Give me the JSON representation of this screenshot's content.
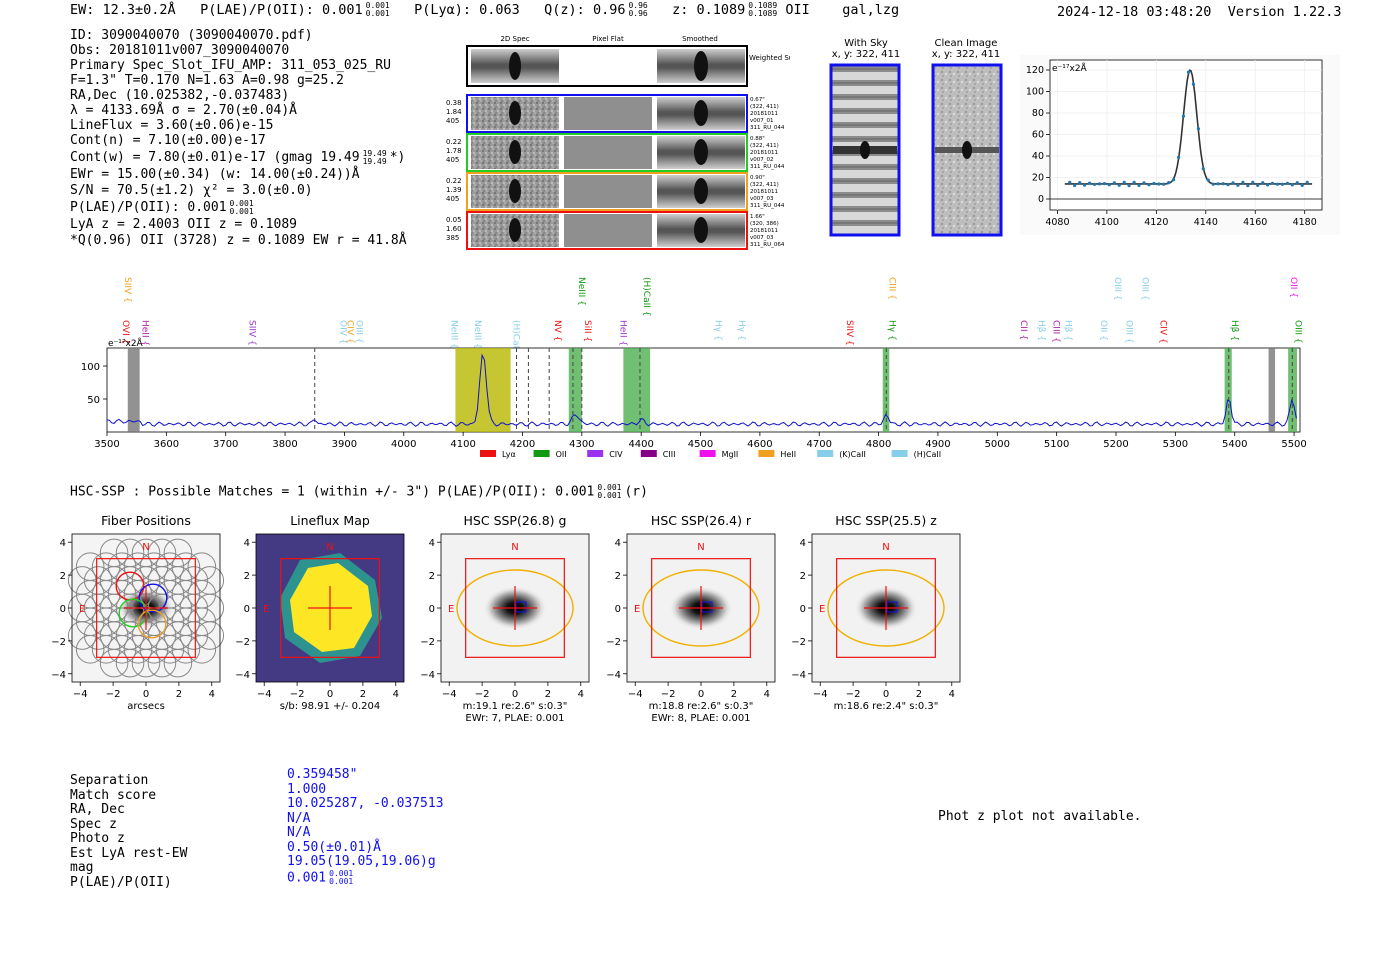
{
  "header": {
    "ew": "EW: 12.3±0.2Å",
    "plae_label": "P(LAE)/P(OII): 0.001",
    "plae_sup": "0.001",
    "plae_sub": "0.001",
    "plya": "P(Lyα): 0.063",
    "qz_label": "Q(z): 0.96",
    "qz_sup": "0.96",
    "qz_sub": "0.96",
    "z_label": "z: 0.1089",
    "z_sup": "0.1089",
    "z_sub": "0.1089",
    "z_line": "OII",
    "classes": "gal,lzg",
    "datetime": "2024-12-18 03:48:20",
    "version": "Version 1.22.3"
  },
  "info": {
    "id": "ID: 3090040070 (3090040070.pdf)",
    "obs": "Obs: 20181011v007_3090040070",
    "primary": "Primary Spec_Slot_IFU_AMP: 311_053_025_RU",
    "params": "F=1.3\"  T=0.170  N=1.63  A=0.98  g=25.2",
    "radec": "RA,Dec (10.025382,-0.037483)",
    "lambda": "λ = 4133.69Å  σ = 2.70(±0.04)Å",
    "lineflux": "LineFlux = 3.60(±0.06)e-15",
    "contn": "Cont(n) = 7.10(±0.00)e-17",
    "contw": "Cont(w) = 7.80(±0.01)e-17 (gmag 19.49",
    "contw_sup": "19.49",
    "contw_sub": "19.49",
    "contw_end": "*)",
    "ewr": "EWr = 15.00(±0.34) (w: 14.00(±0.24))Å",
    "sn": "S/N = 70.5(±1.2)  χ² = 3.0(±0.0)",
    "plae": "P(LAE)/P(OII): 0.001",
    "plae_sup": "0.001",
    "plae_sub": "0.001",
    "lya": "LyA z = 2.4003  OII z = 0.1089",
    "q": "*Q(0.96) OII (3728) z = 0.1089  EW r = 41.8Å"
  },
  "spec2d": {
    "col_headers": [
      "2D Spec",
      "Pixel Flat",
      "Smoothed"
    ],
    "weighted_sum": "Weighted Sum",
    "rows": [
      {
        "left": [
          "0.38",
          "1.84",
          "405"
        ],
        "right": [
          "0.67\"",
          "(322, 411)",
          "20181011",
          "v007_01",
          "311_RU_044"
        ],
        "color": "#1010ee"
      },
      {
        "left": [
          "0.22",
          "1.78",
          "405"
        ],
        "right": [
          "0.88\"",
          "(322, 411)",
          "20181011",
          "v007_02",
          "311_RU_044"
        ],
        "color": "#22cc22"
      },
      {
        "left": [
          "0.22",
          "1.39",
          "405"
        ],
        "right": [
          "0.90\"",
          "(322, 411)",
          "20181011",
          "v007_03",
          "311_RU_044"
        ],
        "color": "#f0a020"
      },
      {
        "left": [
          "0.05",
          "1.60",
          "385"
        ],
        "right": [
          "1.66\"",
          "(320, 386)",
          "20181011",
          "v007_03",
          "311_RU_064"
        ],
        "color": "#ee1111"
      }
    ]
  },
  "sky": {
    "with_sky_title": "With Sky",
    "with_sky_xy": "x, y: 322, 411",
    "clean_title": "Clean Image",
    "clean_xy": "x, y: 322, 411"
  },
  "zoom_plot": {
    "ylabel": "e⁻¹⁷x2Å",
    "xticks": [
      "4080",
      "4100",
      "4120",
      "4140",
      "4160",
      "4180"
    ],
    "yticks": [
      "0",
      "20",
      "40",
      "60",
      "80",
      "100",
      "120"
    ]
  },
  "full_spec": {
    "ylabel": "e⁻¹⁷x2Å",
    "yticks": [
      "50",
      "100"
    ],
    "xticks": [
      "3500",
      "3600",
      "3700",
      "3800",
      "3900",
      "4000",
      "4100",
      "4200",
      "4300",
      "4400",
      "4500",
      "4600",
      "4700",
      "4800",
      "4900",
      "5000",
      "5100",
      "5200",
      "5300",
      "5400",
      "5500"
    ],
    "top_lines": [
      {
        "label": "SIIV",
        "color": "#f0a020",
        "wl": 3525
      },
      {
        "label": "NeIII",
        "color": "#119911",
        "wl": 4290
      },
      {
        "label": "(H)CaII",
        "color": "#119911",
        "wl": 4400
      },
      {
        "label": "CIII",
        "color": "#f0a020",
        "wl": 4813
      },
      {
        "label": "OIII",
        "color": "#87ceeb",
        "wl": 5193
      },
      {
        "label": "OIII",
        "color": "#87ceeb",
        "wl": 5240
      },
      {
        "label": "OII",
        "color": "#ee11ee",
        "wl": 5490
      }
    ],
    "mid_lines": [
      {
        "label": "OVI",
        "color": "#ee1111",
        "wl": 3522
      },
      {
        "label": "HeII",
        "color": "#aa22aa",
        "wl": 3555
      },
      {
        "label": "SIIV",
        "color": "#9933cc",
        "wl": 3735
      },
      {
        "label": "OIV",
        "color": "#87ceeb",
        "wl": 3888
      },
      {
        "label": "CIV",
        "color": "#f0a020",
        "wl": 3900
      },
      {
        "label": "OIII",
        "color": "#87ceeb",
        "wl": 3915
      },
      {
        "label": "NeIII",
        "color": "#87ceeb",
        "wl": 4075
      },
      {
        "label": "NeIII",
        "color": "#87ceeb",
        "wl": 4115
      },
      {
        "label": "(H)CaII",
        "color": "#87ceeb",
        "wl": 4180
      },
      {
        "label": "NV",
        "color": "#ee1111",
        "wl": 4250
      },
      {
        "label": "SiII",
        "color": "#ee1111",
        "wl": 4300
      },
      {
        "label": "HeII",
        "color": "#9933cc",
        "wl": 4360
      },
      {
        "label": "Hγ",
        "color": "#87ceeb",
        "wl": 4520
      },
      {
        "label": "Hγ",
        "color": "#87ceeb",
        "wl": 4560
      },
      {
        "label": "SIIV",
        "color": "#ee1111",
        "wl": 4742
      },
      {
        "label": "Hγ",
        "color": "#119911",
        "wl": 4813
      },
      {
        "label": "CII",
        "color": "#aa22aa",
        "wl": 5035
      },
      {
        "label": "Hβ",
        "color": "#87ceeb",
        "wl": 5065
      },
      {
        "label": "CIII",
        "color": "#aa22aa",
        "wl": 5090
      },
      {
        "label": "Hβ",
        "color": "#87ceeb",
        "wl": 5110
      },
      {
        "label": "OII",
        "color": "#87ceeb",
        "wl": 5170
      },
      {
        "label": "OIII",
        "color": "#87ceeb",
        "wl": 5213
      },
      {
        "label": "CIV",
        "color": "#ee1111",
        "wl": 5270
      },
      {
        "label": "Hβ",
        "color": "#119911",
        "wl": 5390
      },
      {
        "label": "OIII",
        "color": "#119911",
        "wl": 5497
      }
    ],
    "legend": [
      {
        "label": "Lyα",
        "color": "#ee1111"
      },
      {
        "label": "OII",
        "color": "#119911"
      },
      {
        "label": "CIV",
        "color": "#9933ee"
      },
      {
        "label": "CIII",
        "color": "#880088"
      },
      {
        "label": "MgII",
        "color": "#ee11ee"
      },
      {
        "label": "HeII",
        "color": "#f0a020"
      },
      {
        "label": "(K)CaII",
        "color": "#87ceeb"
      },
      {
        "label": "(H)CaII",
        "color": "#87ceeb"
      }
    ]
  },
  "hsc": {
    "title": "HSC-SSP : Possible Matches = 1 (within +/- 3\")  P(LAE)/P(OII): 0.001",
    "title_sup": "0.001",
    "title_sub": "0.001",
    "title_end": "(r)",
    "panels": [
      {
        "title": "Fiber Positions",
        "caption": [
          "arcsecs"
        ]
      },
      {
        "title": "Lineflux Map",
        "caption": [
          "s/b: 98.91 +/- 0.204"
        ]
      },
      {
        "title": "HSC SSP(26.8) g",
        "caption": [
          "m:19.1  re:2.6\"  s:0.3\"",
          "EWr: 7, PLAE: 0.001"
        ]
      },
      {
        "title": "HSC SSP(26.4) r",
        "caption": [
          "m:18.8  re:2.6\"  s:0.3\"",
          "EWr: 8, PLAE: 0.001"
        ]
      },
      {
        "title": "HSC SSP(25.5) z",
        "caption": [
          "m:18.6  re:2.4\"  s:0.3\""
        ]
      }
    ],
    "north": "N",
    "east": "E",
    "ticks": [
      "−4",
      "−2",
      "0",
      "2",
      "4"
    ],
    "yticks": [
      "4",
      "2",
      "0",
      "−2",
      "−4"
    ]
  },
  "summary": {
    "labels": [
      "Separation",
      "Match score",
      "RA, Dec",
      "Spec z",
      "Photo z",
      "Est LyA rest-EW",
      "mag",
      "P(LAE)/P(OII)"
    ],
    "values": [
      "0.359458\"",
      "1.000",
      "10.025287, -0.037513",
      "N/A",
      "N/A",
      "0.50(±0.01)Å",
      "19.05(19.05,19.06)g",
      "0.001"
    ],
    "plae_sup": "0.001",
    "plae_sub": "0.001",
    "photz_note": "Phot z plot not available."
  },
  "colors": {
    "spectrum": "#1010cc",
    "lya_band": "#b8b800",
    "line_band": "#4caf50",
    "red_box": "#ee1111",
    "ellipse": "#f0b000",
    "value_blue": "#1010ee"
  }
}
